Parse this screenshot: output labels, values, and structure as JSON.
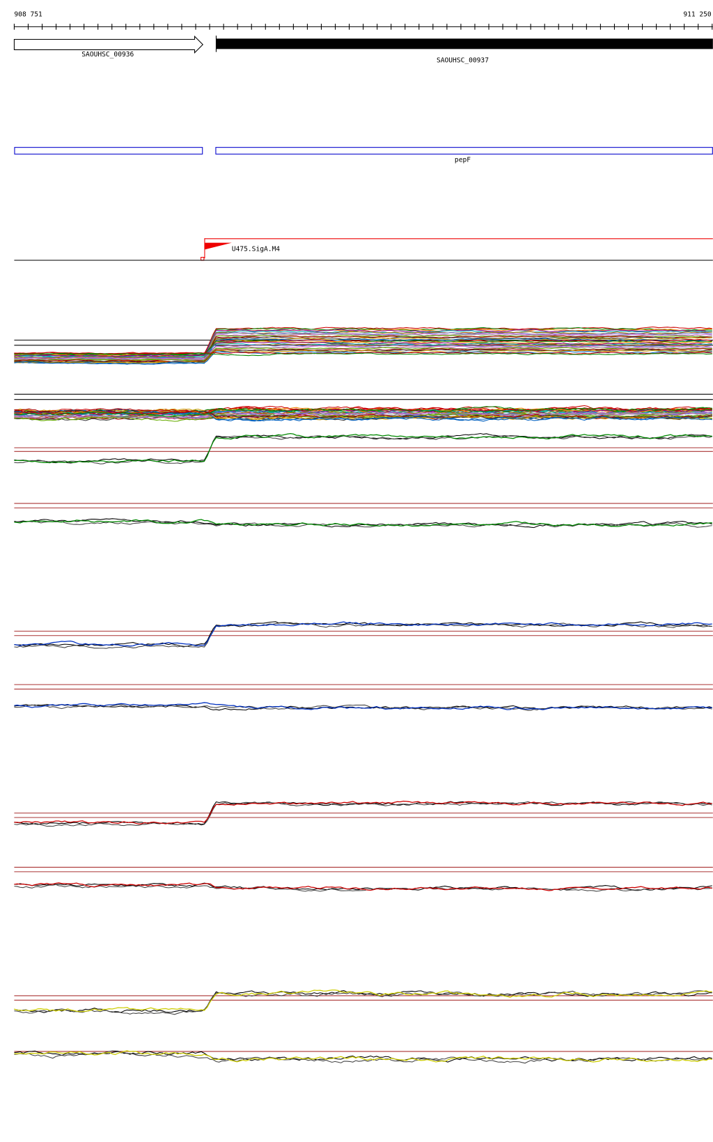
{
  "ruler": {
    "start": "908 751",
    "end": "911 250"
  },
  "genes": [
    {
      "label": "SAOUHSC_00936"
    },
    {
      "label": "SAOUHSC_00937"
    }
  ],
  "annotation": {
    "label": "pepF"
  },
  "promoter": {
    "label": "U475.SigA.M4"
  }
}
